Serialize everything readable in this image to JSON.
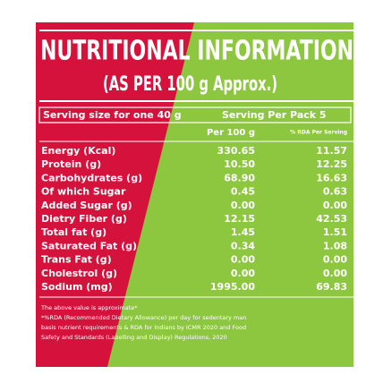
{
  "header": {
    "title": "NUTRITIONAL INFORMATION",
    "subtitle": "(AS PER 100 g Approx.)"
  },
  "serving": {
    "size": "Serving size for one 40 g",
    "per_pack": "Serving Per Pack 5"
  },
  "table": {
    "columns": [
      "Per 100 g",
      "% RDA Per Serving"
    ],
    "rows": [
      [
        "Energy (Kcal)",
        "330.65",
        "11.57"
      ],
      [
        "Protein (g)",
        "10.50",
        "12.25"
      ],
      [
        "Carbohydrates (g)",
        "68.90",
        "16.63"
      ],
      [
        "Of which Sugar",
        "0.45",
        "0.63"
      ],
      [
        "Added Sugar (g)",
        "0.00",
        "0.00"
      ],
      [
        "Dietry Fiber (g)",
        "12.15",
        "42.53"
      ],
      [
        "Total fat (g)",
        "1.45",
        "1.51"
      ],
      [
        "Saturated Fat (g)",
        "0.34",
        "1.08"
      ],
      [
        "Trans Fat (g)",
        "0.00",
        "0.00"
      ],
      [
        "Cholestrol (g)",
        "0.00",
        "0.00"
      ],
      [
        "Sodium (mg)",
        "1995.00",
        "69.83"
      ]
    ]
  },
  "footnotes": [
    "The above value is approximate*",
    "*%RDA (Recommended Dietary Allowance) per day for sedentary man",
    "basis nutrient requirements & RDA for Indians by ICMR 2020 and Food",
    "Safety and Standards (Labelling and Display) Regulations, 2020"
  ]
}
